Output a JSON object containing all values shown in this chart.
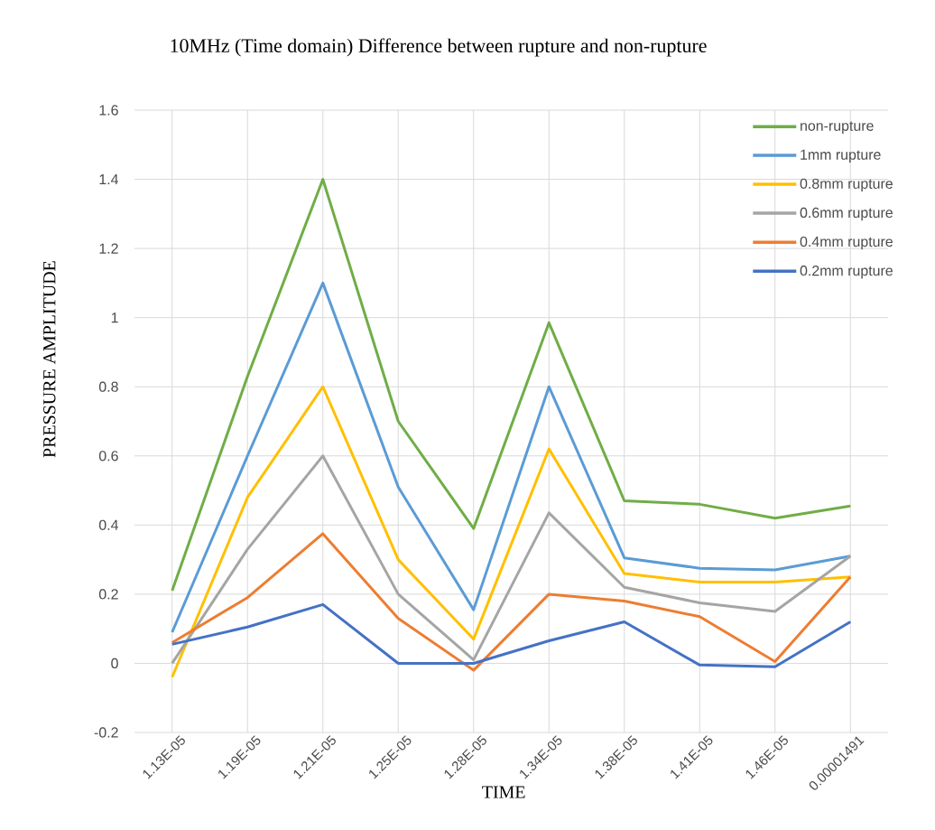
{
  "chart_data": {
    "type": "line",
    "title": "10MHz (Time domain) Difference between rupture and non-rupture",
    "xlabel": "TIME",
    "ylabel": "PRESSURE AMPLITUDE",
    "categories": [
      "1.13E-05",
      "1.19E-05",
      "1.21E-05",
      "1.25E-05",
      "1.28E-05",
      "1.34E-05",
      "1.38E-05",
      "1.41E-05",
      "1.46E-05",
      "0.00001491"
    ],
    "series": [
      {
        "name": "non-rupture",
        "color": "#70ad47",
        "values": [
          0.21,
          0.83,
          1.4,
          0.7,
          0.39,
          0.985,
          0.47,
          0.46,
          0.42,
          0.455
        ]
      },
      {
        "name": "1mm rupture",
        "color": "#5b9bd5",
        "values": [
          0.09,
          0.6,
          1.1,
          0.51,
          0.155,
          0.8,
          0.305,
          0.275,
          0.27,
          0.31
        ]
      },
      {
        "name": "0.8mm rupture",
        "color": "#ffc000",
        "values": [
          -0.04,
          0.48,
          0.8,
          0.3,
          0.07,
          0.62,
          0.26,
          0.235,
          0.235,
          0.25
        ]
      },
      {
        "name": "0.6mm rupture",
        "color": "#a5a5a5",
        "values": [
          0.0,
          0.33,
          0.6,
          0.2,
          0.01,
          0.435,
          0.22,
          0.175,
          0.15,
          0.31
        ]
      },
      {
        "name": "0.4mm rupture",
        "color": "#ed7d31",
        "values": [
          0.06,
          0.19,
          0.375,
          0.13,
          -0.02,
          0.2,
          0.18,
          0.135,
          0.005,
          0.25
        ]
      },
      {
        "name": "0.2mm rupture",
        "color": "#4472c4",
        "values": [
          0.055,
          0.105,
          0.17,
          0.0,
          0.0,
          0.065,
          0.12,
          -0.005,
          -0.01,
          0.12
        ]
      }
    ],
    "ylim": [
      -0.2,
      1.6
    ],
    "yticks": [
      -0.2,
      0,
      0.2,
      0.4,
      0.6,
      0.8,
      1,
      1.2,
      1.4,
      1.6
    ],
    "grid": true,
    "legend": "top right",
    "marker": "none",
    "line_style": "solid"
  }
}
